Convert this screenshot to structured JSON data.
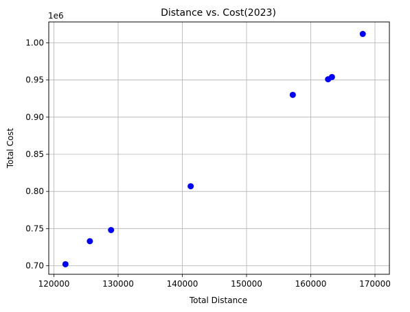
{
  "chart_data": {
    "type": "scatter",
    "title": "Distance vs. Cost(2023)",
    "xlabel": "Total Distance",
    "ylabel": "Total Cost",
    "y_offset_label": "1e6",
    "xlim": [
      120000,
      170000
    ],
    "ylim": [
      0.7,
      1.0
    ],
    "x_ticks": [
      120000,
      130000,
      140000,
      150000,
      160000,
      170000
    ],
    "x_tick_labels": [
      "120000",
      "130000",
      "140000",
      "150000",
      "160000",
      "170000"
    ],
    "y_ticks": [
      0.7,
      0.75,
      0.8,
      0.85,
      0.9,
      0.95,
      1.0
    ],
    "y_tick_labels": [
      "0.70",
      "0.75",
      "0.80",
      "0.85",
      "0.90",
      "0.95",
      "1.00"
    ],
    "grid": true,
    "marker_color": "#0000ff",
    "points": [
      {
        "x": 121800,
        "y": 0.702
      },
      {
        "x": 125600,
        "y": 0.733
      },
      {
        "x": 128900,
        "y": 0.748
      },
      {
        "x": 141300,
        "y": 0.807
      },
      {
        "x": 157200,
        "y": 0.93
      },
      {
        "x": 162700,
        "y": 0.951
      },
      {
        "x": 163300,
        "y": 0.954
      },
      {
        "x": 168100,
        "y": 1.012
      }
    ]
  }
}
